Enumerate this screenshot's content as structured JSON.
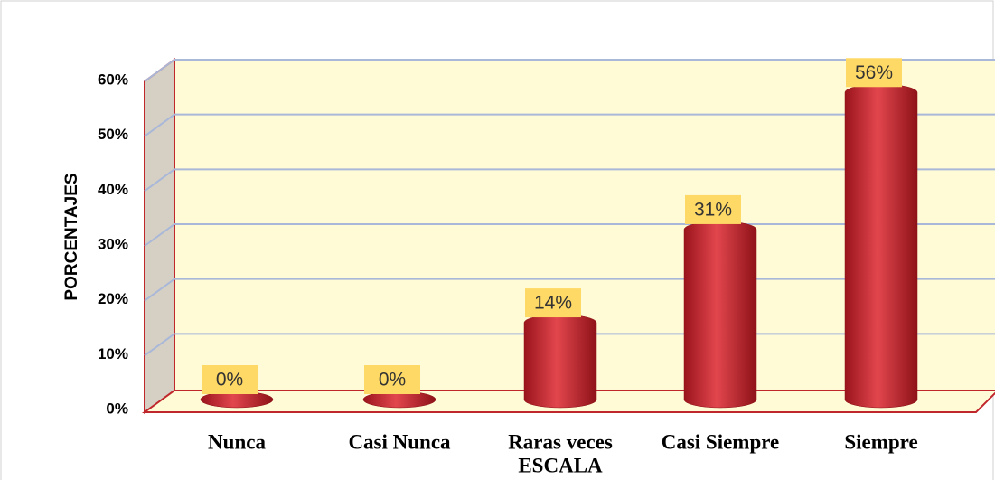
{
  "chart_data": {
    "type": "bar",
    "categories": [
      "Nunca",
      "Casi Nunca",
      "Raras veces",
      "Casi Siempre",
      "Siempre"
    ],
    "values": [
      0,
      0,
      14,
      31,
      56
    ],
    "value_labels": [
      "0%",
      "0%",
      "14%",
      "31%",
      "56%"
    ],
    "color": "#c8262e",
    "ylim": [
      0,
      60
    ],
    "yticks": [
      {
        "value": 0,
        "label": "0%"
      },
      {
        "value": 10,
        "label": "10%"
      },
      {
        "value": 20,
        "label": "20%"
      },
      {
        "value": 30,
        "label": "30%"
      },
      {
        "value": 40,
        "label": "40%"
      },
      {
        "value": 50,
        "label": "50%"
      },
      {
        "value": 60,
        "label": "60%"
      }
    ],
    "y_label": "PORCENTAJES",
    "x_label": "ESCALA",
    "grid": true
  }
}
